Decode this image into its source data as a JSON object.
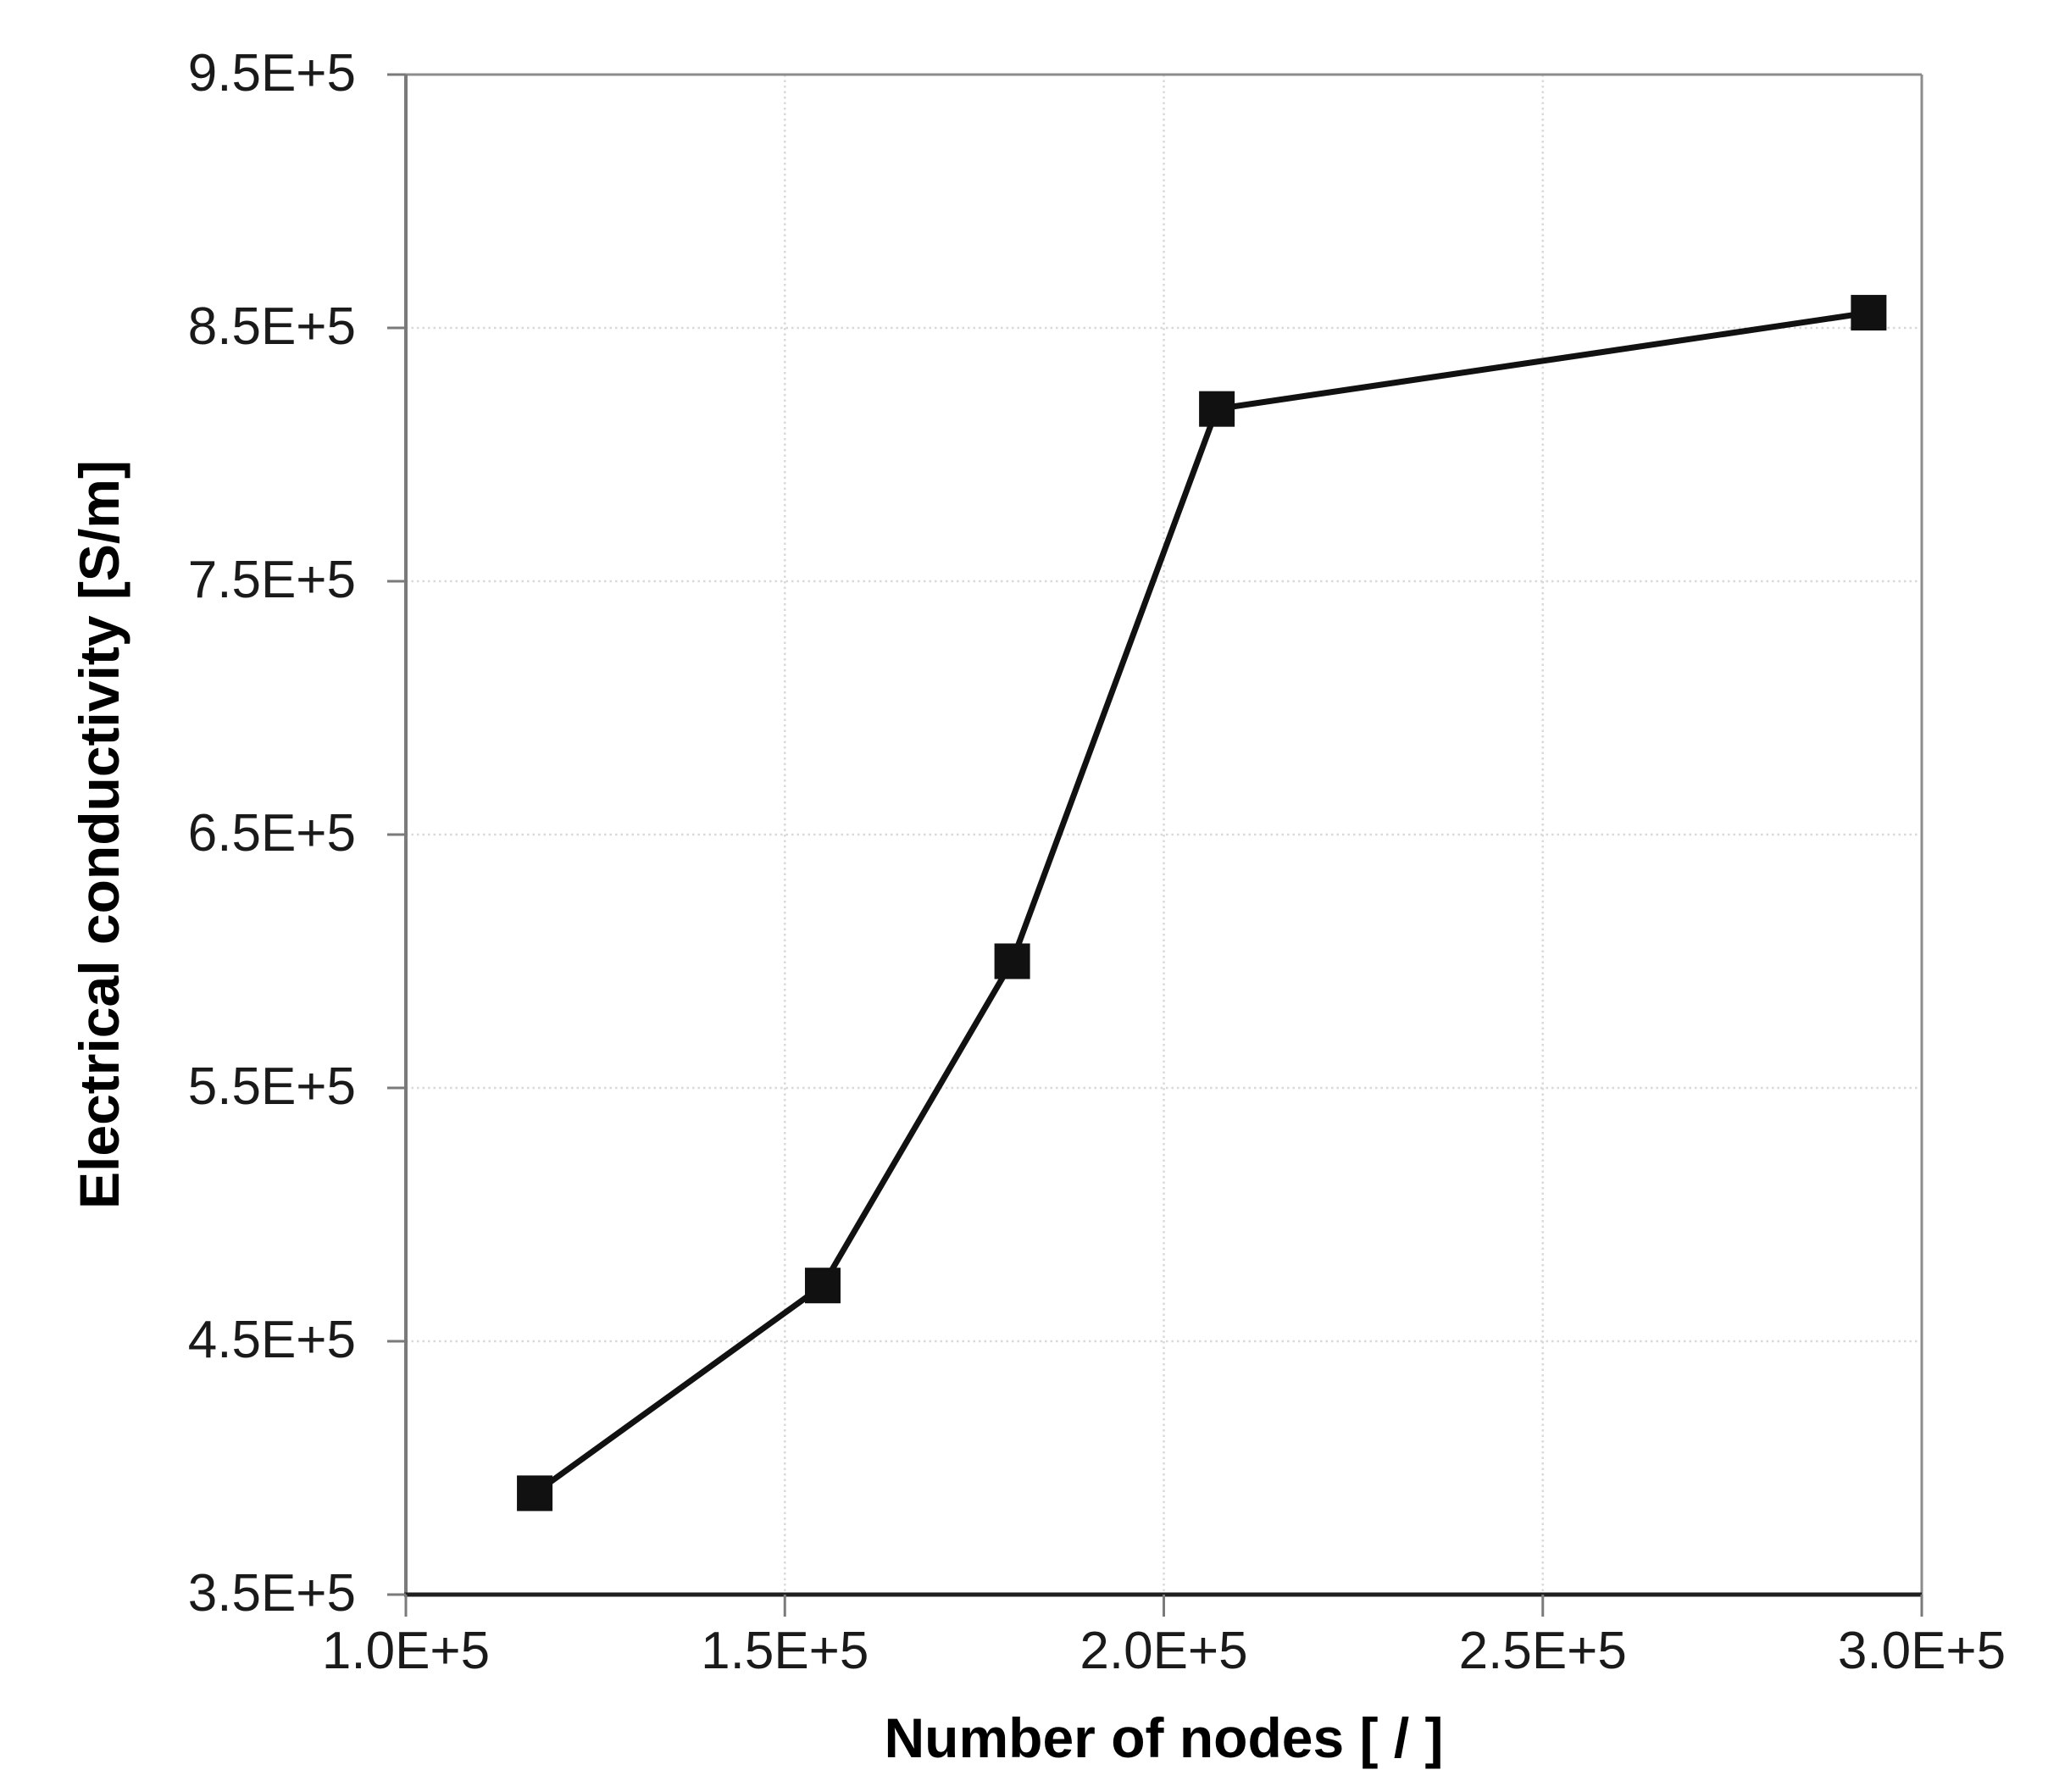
{
  "page": {
    "background": "#ffffff"
  },
  "chart_data": {
    "type": "line",
    "title": "",
    "xlabel": "Number of nodes [ / ]",
    "ylabel": "Electrical conductivity [S/m]",
    "x": [
      117000,
      155000,
      180000,
      207000,
      293000
    ],
    "y": [
      390000,
      472000,
      600000,
      818000,
      856000
    ],
    "xlim": [
      100000,
      300000
    ],
    "ylim": [
      350000,
      950000
    ],
    "x_ticks": [
      100000,
      150000,
      200000,
      250000,
      300000
    ],
    "x_tick_labels": [
      "1.0E+5",
      "1.5E+5",
      "2.0E+5",
      "2.5E+5",
      "3.0E+5"
    ],
    "y_ticks": [
      350000,
      450000,
      550000,
      650000,
      750000,
      850000,
      950000
    ],
    "y_tick_labels": [
      "3.5E+5",
      "4.5E+5",
      "5.5E+5",
      "6.5E+5",
      "7.5E+5",
      "8.5E+5",
      "9.5E+5"
    ],
    "grid": {
      "horizontal": true,
      "vertical": true,
      "style": "dotted"
    },
    "legend": {
      "visible": false
    },
    "marker": {
      "shape": "filled-square",
      "size": 42,
      "color": "#111111"
    },
    "line": {
      "color": "#111111",
      "width": 7
    },
    "colors": {
      "grid": "#d9d9d9",
      "axis": "#7a7a7a",
      "border": "#8c8c8c",
      "x_axis": "#1f1f1f",
      "text": "#1a1a1a"
    }
  }
}
